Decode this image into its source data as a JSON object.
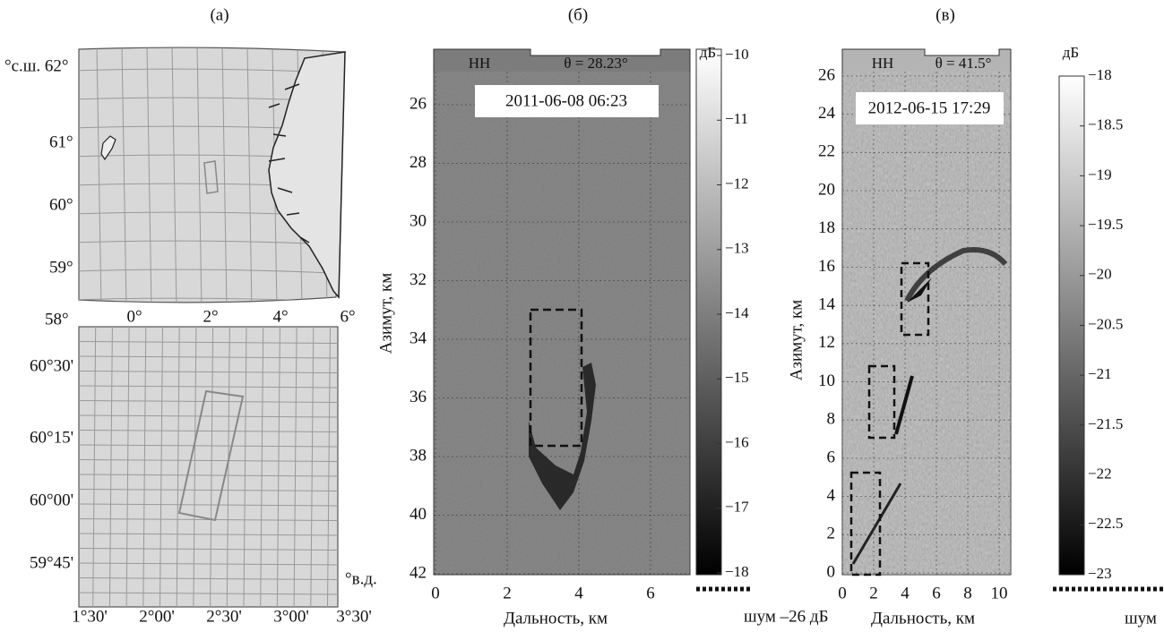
{
  "panels": [
    {
      "label": "(а)",
      "top_map": {
        "lat_labels": [
          "°с.ш. 62°",
          "61°",
          "60°",
          "59°",
          "58°"
        ],
        "lon_labels": [
          "0°",
          "2°",
          "4°",
          "6°"
        ]
      },
      "bottom_map": {
        "lat_labels": [
          "60°30'",
          "60°15'",
          "60°00'",
          "59°45'"
        ],
        "lon_unit": "°в.д.",
        "lon_labels": [
          "1°30'",
          "2°00'",
          "2°30'",
          "3°00'",
          "3°30'"
        ]
      }
    },
    {
      "label": "(б)",
      "polarization": "HH",
      "angle": "θ = 28.23°",
      "timestamp": "2011-06-08  06:23",
      "y_label": "Азимут, км",
      "x_label": "Дальность, км",
      "yticks": [
        "26",
        "28",
        "30",
        "32",
        "34",
        "36",
        "38",
        "40",
        "42"
      ],
      "xticks": [
        "0",
        "2",
        "4",
        "6"
      ],
      "colorbar": {
        "unit": "дБ",
        "ticks": [
          "−10",
          "−11",
          "−12",
          "−13",
          "−14",
          "−15",
          "−16",
          "−17",
          "−18"
        ],
        "noise": "шум –26 дБ"
      }
    },
    {
      "label": "(в)",
      "polarization": "HH",
      "angle": "θ = 41.5°",
      "timestamp": "2012-06-15  17:29",
      "y_label": "Азимут, км",
      "x_label": "Дальность, км",
      "yticks": [
        "0",
        "2",
        "4",
        "6",
        "8",
        "10",
        "12",
        "14",
        "16",
        "18",
        "20",
        "22",
        "24",
        "26"
      ],
      "xticks": [
        "0",
        "2",
        "4",
        "6",
        "8",
        "10"
      ],
      "colorbar": {
        "unit": "дБ",
        "ticks": [
          "−18",
          "−18.5",
          "−19",
          "−19.5",
          "−20",
          "−20.5",
          "−21",
          "−21.5",
          "−22",
          "−22.5",
          "−23"
        ],
        "noise": "шум"
      }
    }
  ]
}
